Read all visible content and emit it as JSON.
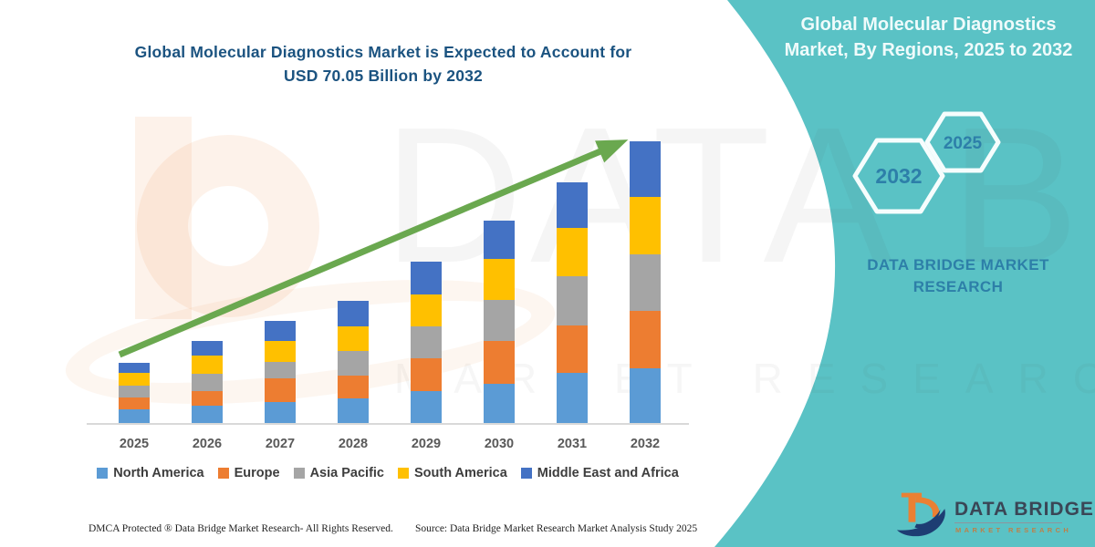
{
  "colors": {
    "teal_panel": "#5ac2c5",
    "title_blue": "#1b5380",
    "arrow_green": "#6aa84f",
    "hex_text_blue": "#2d7fa9",
    "axis_gray": "#d9d9d9",
    "logo_orange": "#ea8033",
    "logo_navy": "#1d3d73"
  },
  "chart_title": {
    "line1": "Global Molecular Diagnostics Market is Expected to Account for",
    "line2": "USD 70.05 Billion by 2032"
  },
  "panel": {
    "title_line1": "Global Molecular Diagnostics",
    "title_line2": "Market, By Regions, 2025 to 2032",
    "hexagon_large_label": "2032",
    "hexagon_small_label": "2025",
    "brand_line1": "DATA BRIDGE MARKET",
    "brand_line2": "RESEARCH",
    "logo_name": "DATA BRIDGE",
    "logo_subtitle": "MARKET RESEARCH"
  },
  "watermark": {
    "line1": "DATA BRIDGE",
    "line2": "MARKET RESEARCH"
  },
  "footer": {
    "dmca": "DMCA Protected ® Data Bridge Market Research-  All Rights Reserved.",
    "source": "Source: Data Bridge Market Research  Market Analysis Study 2025"
  },
  "chart_data": {
    "type": "bar",
    "stacked": true,
    "title": "Global Molecular Diagnostics Market is Expected to Account for USD 70.05 Billion by 2032",
    "unit": "USD Billion",
    "grid": false,
    "legend_position": "bottom",
    "trend_arrow": true,
    "categories": [
      "2025",
      "2026",
      "2027",
      "2028",
      "2029",
      "2030",
      "2031",
      "2032"
    ],
    "series": [
      {
        "name": "North America",
        "color": "#5B9BD5",
        "values": [
          3.4,
          4.4,
          5.3,
          6.2,
          7.9,
          9.8,
          12.5,
          13.6
        ]
      },
      {
        "name": "Europe",
        "color": "#ED7D31",
        "values": [
          3.0,
          3.5,
          5.7,
          5.5,
          8.3,
          10.6,
          11.7,
          14.3
        ]
      },
      {
        "name": "Asia Pacific",
        "color": "#A5A5A5",
        "values": [
          3.0,
          4.3,
          4.2,
          6.2,
          7.9,
          10.2,
          12.2,
          14.0
        ]
      },
      {
        "name": "South America",
        "color": "#FFC000",
        "values": [
          3.0,
          4.5,
          5.3,
          6.2,
          7.8,
          10.2,
          12.0,
          14.3
        ]
      },
      {
        "name": "Middle East and Africa",
        "color": "#4472C4",
        "values": [
          2.7,
          3.6,
          4.9,
          6.3,
          8.1,
          9.4,
          11.3,
          13.85
        ]
      }
    ],
    "totals_estimated": [
      15.1,
      20.3,
      25.4,
      30.4,
      40.0,
      50.2,
      59.7,
      70.05
    ]
  }
}
